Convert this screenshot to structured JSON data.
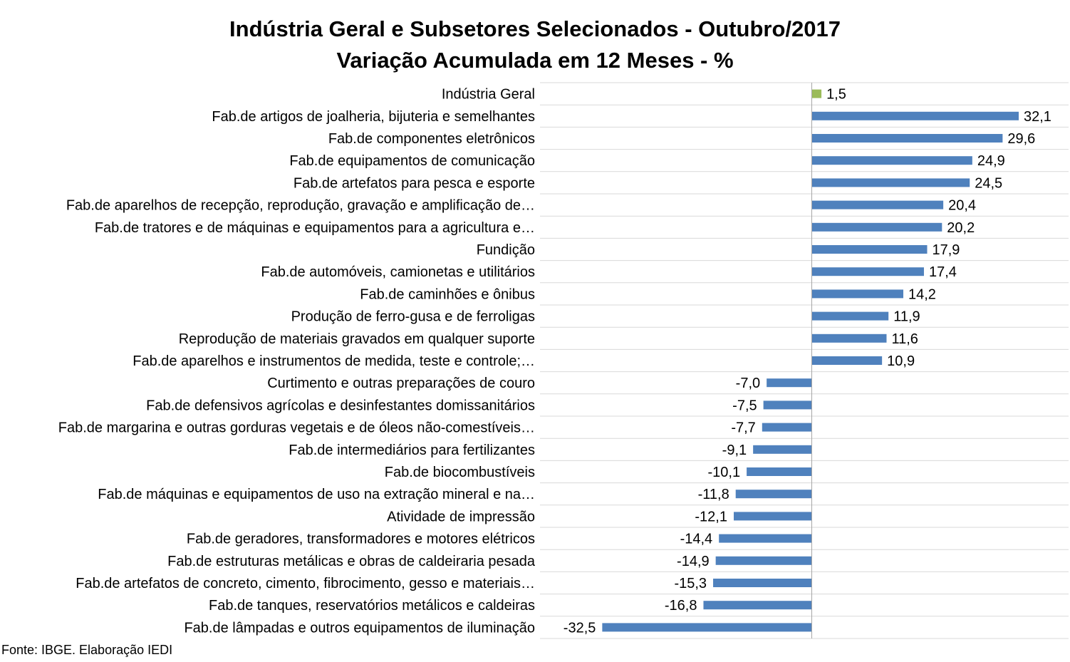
{
  "source": "Fonte: IBGE. Elaboração IEDI",
  "colors": {
    "highlight": "#9BBB59",
    "bar": "#4F81BD",
    "grid": "#D9D9D9",
    "axis": "#A6A6A6"
  },
  "chart_data": {
    "type": "bar",
    "orientation": "horizontal",
    "title": "Indústria Geral e Subsetores Selecionados - Outubro/2017",
    "subtitle": "Variação Acumulada em 12 Meses - %",
    "categories": [
      "Indústria Geral",
      "Fab.de artigos de joalheria, bijuteria e semelhantes",
      "Fab.de componentes eletrônicos",
      "Fab.de equipamentos de comunicação",
      "Fab.de artefatos para pesca e esporte",
      "Fab.de aparelhos de recepção, reprodução, gravação e amplificação de…",
      "Fab.de tratores e de máquinas e equipamentos para a agricultura e…",
      "Fundição",
      "Fab.de automóveis, camionetas e utilitários",
      "Fab.de caminhões e ônibus",
      "Produção de ferro-gusa e de ferroligas",
      "Reprodução de materiais gravados em qualquer suporte",
      "Fab.de aparelhos e instrumentos de medida, teste e controle;…",
      "Curtimento e outras preparações de couro",
      "Fab.de defensivos agrícolas e desinfestantes domissanitários",
      "Fab.de margarina e outras gorduras vegetais e de óleos não-comestíveis…",
      "Fab.de intermediários para fertilizantes",
      "Fab.de biocombustíveis",
      "Fab.de máquinas e equipamentos de uso na extração mineral e na…",
      "Atividade de impressão",
      "Fab.de geradores, transformadores e motores elétricos",
      "Fab.de estruturas metálicas e obras de caldeiraria pesada",
      "Fab.de artefatos de concreto, cimento, fibrocimento, gesso e materiais…",
      "Fab.de tanques, reservatórios metálicos e caldeiras",
      "Fab.de lâmpadas e outros equipamentos de iluminação"
    ],
    "values": [
      1.5,
      32.1,
      29.6,
      24.9,
      24.5,
      20.4,
      20.2,
      17.9,
      17.4,
      14.2,
      11.9,
      11.6,
      10.9,
      -7.0,
      -7.5,
      -7.7,
      -9.1,
      -10.1,
      -11.8,
      -12.1,
      -14.4,
      -14.9,
      -15.3,
      -16.8,
      -32.5
    ],
    "value_labels": [
      "1,5",
      "32,1",
      "29,6",
      "24,9",
      "24,5",
      "20,4",
      "20,2",
      "17,9",
      "17,4",
      "14,2",
      "11,9",
      "11,6",
      "10,9",
      "-7,0",
      "-7,5",
      "-7,7",
      "-9,1",
      "-10,1",
      "-11,8",
      "-12,1",
      "-14,4",
      "-14,9",
      "-15,3",
      "-16,8",
      "-32,5"
    ],
    "highlight_index": 0,
    "grid": true,
    "legend": false
  }
}
